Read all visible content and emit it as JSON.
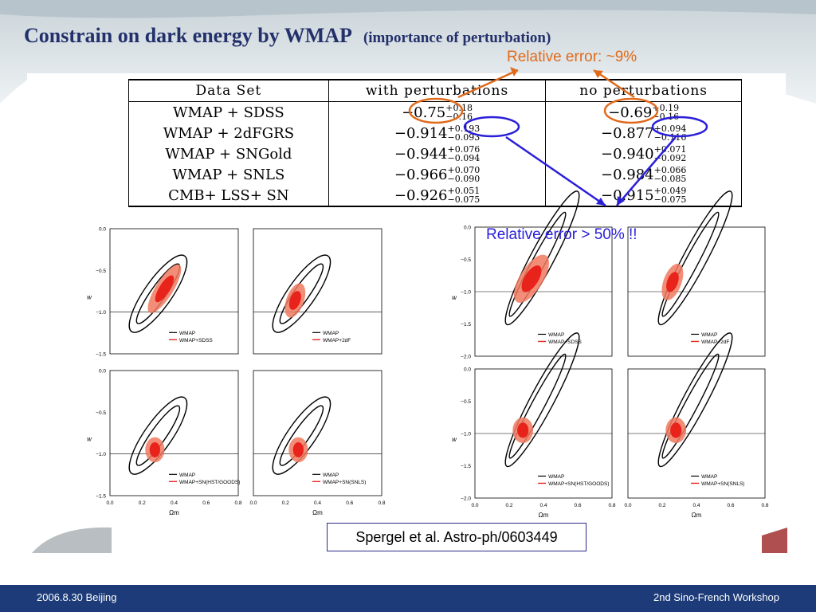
{
  "slide": {
    "title": "Constrain on dark energy by WMAP",
    "subtitle": "(importance of perturbation)",
    "annotation_orange": "Relative error: ~9%",
    "annotation_blue": "Relative error > 50% !!",
    "citation": "Spergel et al. Astro-ph/0603449",
    "footer_left": "2006.8.30 Beijing",
    "footer_right": "2nd Sino-French Workshop"
  },
  "table": {
    "headers": [
      "Data Set",
      "with perturbations",
      "no perturbations"
    ],
    "rows": [
      {
        "set": "WMAP + SDSS",
        "with": "−0.75",
        "with_up": "+0.18",
        "with_dn": "−0.16",
        "no": "−0.69",
        "no_up": "+0.19",
        "no_dn": "−0.16"
      },
      {
        "set": "WMAP + 2dFGRS",
        "with": "−0.914",
        "with_up": "+0.193",
        "with_dn": "−0.093",
        "no": "−0.877",
        "no_up": "+0.094",
        "no_dn": "−0.116"
      },
      {
        "set": "WMAP + SNGold",
        "with": "−0.944",
        "with_up": "+0.076",
        "with_dn": "−0.094",
        "no": "−0.940",
        "no_up": "+0.071",
        "no_dn": "−0.092"
      },
      {
        "set": "WMAP + SNLS",
        "with": "−0.966",
        "with_up": "+0.070",
        "with_dn": "−0.090",
        "no": "−0.984",
        "no_up": "+0.066",
        "no_dn": "−0.085"
      },
      {
        "set": "CMB+ LSS+ SN",
        "with": "−0.926",
        "with_up": "+0.051",
        "with_dn": "−0.075",
        "no": "−0.915",
        "no_up": "+0.049",
        "no_dn": "−0.075"
      }
    ]
  },
  "plots": {
    "ylabel": "w",
    "xlabel": "Ωm",
    "xticks": [
      "0.0",
      "0.2",
      "0.4",
      "0.6",
      "0.8"
    ],
    "left_yticks": [
      "0.0",
      "−0.5",
      "−1.0",
      "−1.5"
    ],
    "right_yticks": [
      "0.0",
      "−0.5",
      "−1.0",
      "−1.5",
      "−2.0"
    ],
    "legends": [
      {
        "line1": "WMAP",
        "line2": "WMAP+SDSS"
      },
      {
        "line1": "WMAP",
        "line2": "WMAP+2dF"
      },
      {
        "line1": "WMAP",
        "line2": "WMAP+SN(HST/GOODS)"
      },
      {
        "line1": "WMAP",
        "line2": "WMAP+SN(SNLS)"
      }
    ],
    "colors": {
      "contour": "#000000",
      "constraint": "#e8231c",
      "constraint_light": "#f07a60"
    }
  }
}
